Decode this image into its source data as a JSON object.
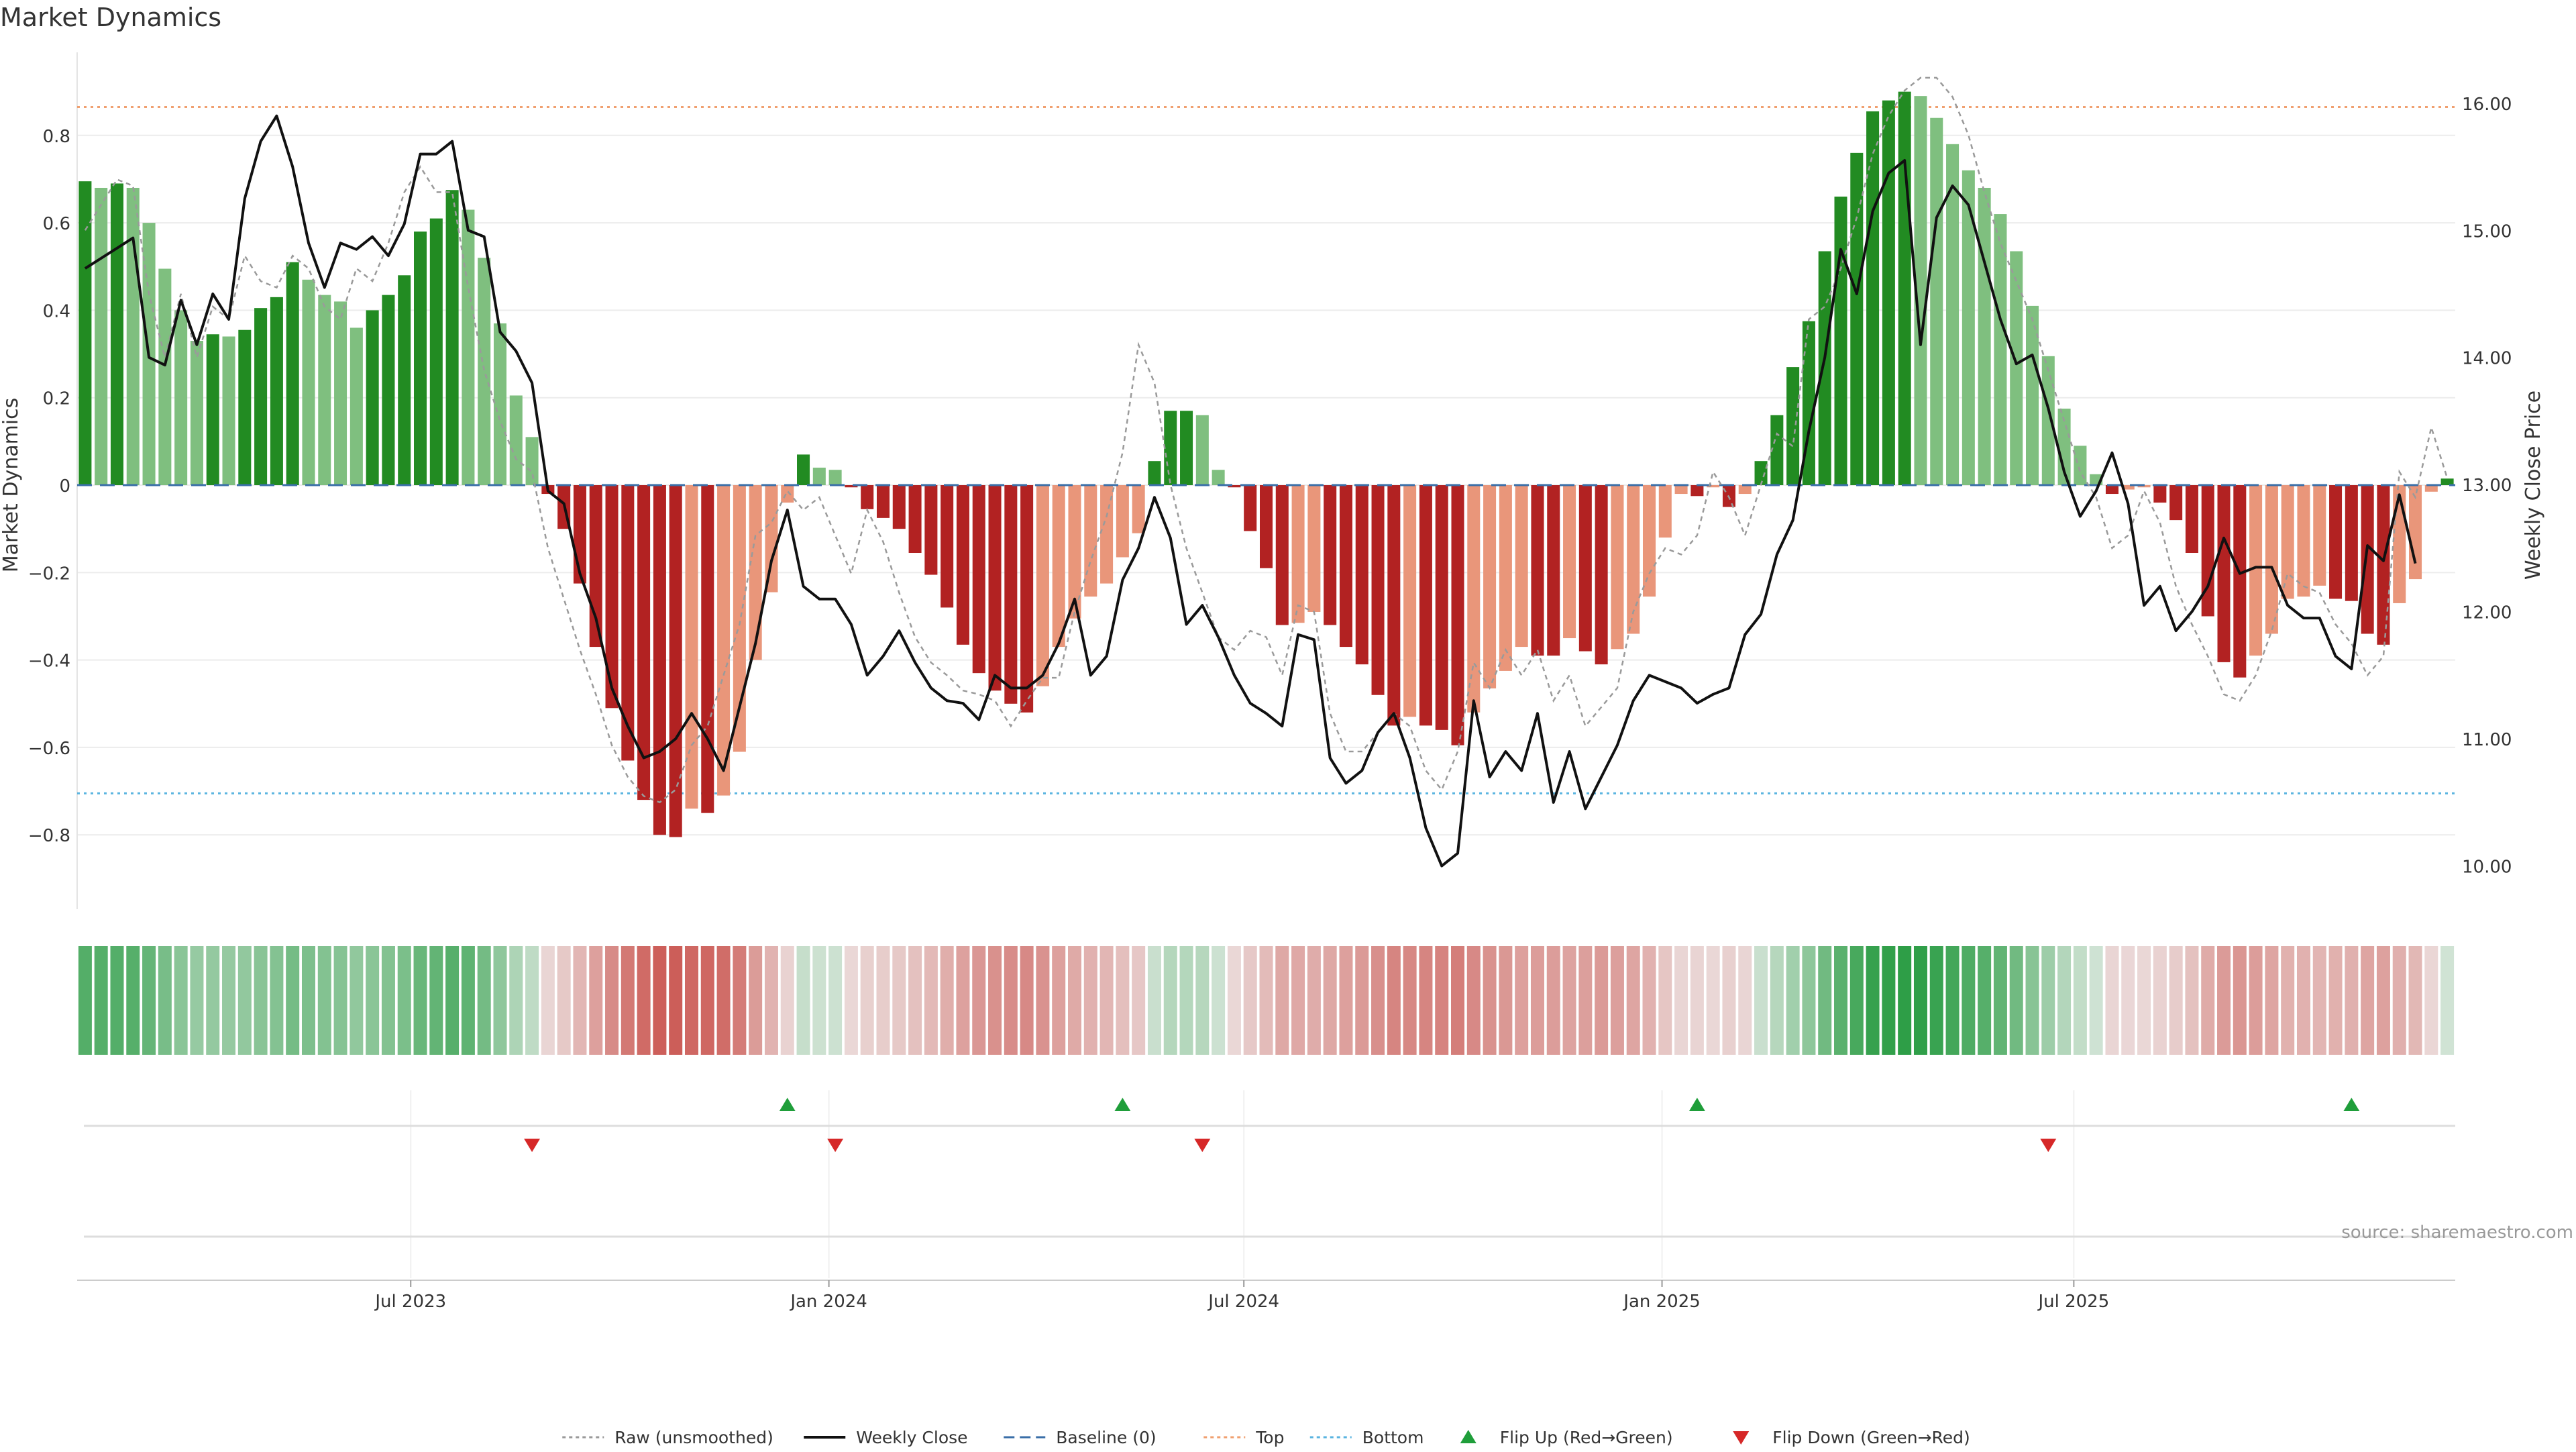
{
  "chart_data": {
    "type": "bar",
    "title": "Market Dynamics",
    "ylabel_left": "Market Dynamics",
    "ylabel_right": "Weekly Close Price",
    "source": "source: sharemaestro.com",
    "ylim_left": [
      -0.97,
      0.99
    ],
    "ylim_right": [
      9.66,
      16.4
    ],
    "y_ticks_left": [
      -0.8,
      -0.6,
      -0.4,
      -0.2,
      0,
      0.2,
      0.4,
      0.6,
      0.8
    ],
    "y_tick_labels_left": [
      "−0.8",
      "−0.6",
      "−0.4",
      "−0.2",
      "0",
      "0.2",
      "0.4",
      "0.6",
      "0.8"
    ],
    "y_ticks_right": [
      10,
      11,
      12,
      13,
      14,
      15,
      16
    ],
    "y_tick_labels_right": [
      "10.00",
      "11.00",
      "12.00",
      "13.00",
      "14.00",
      "15.00",
      "16.00"
    ],
    "x_ticks": [
      {
        "index": 20.4,
        "label": "Jul 2023"
      },
      {
        "index": 46.6,
        "label": "Jan 2024"
      },
      {
        "index": 72.6,
        "label": "Jul 2024"
      },
      {
        "index": 98.8,
        "label": "Jan 2025"
      },
      {
        "index": 124.6,
        "label": "Jul 2025"
      }
    ],
    "grid": true,
    "legend_position": "bottom-center",
    "reference_lines": {
      "baseline": 0,
      "top": 0.865,
      "bottom": -0.705
    },
    "series": [
      {
        "name": "Weekly Close",
        "type": "line",
        "axis": "right",
        "values": [
          14.7,
          14.78,
          14.86,
          14.94,
          14.0,
          13.94,
          14.45,
          14.1,
          14.5,
          14.3,
          15.25,
          15.7,
          15.9,
          15.5,
          14.9,
          14.55,
          14.9,
          14.85,
          14.95,
          14.8,
          15.05,
          15.6,
          15.6,
          15.7,
          15.0,
          14.95,
          14.2,
          14.05,
          13.8,
          12.95,
          12.85,
          12.3,
          11.95,
          11.4,
          11.1,
          10.85,
          10.9,
          11.0,
          11.2,
          11.0,
          10.75,
          11.25,
          11.75,
          12.4,
          12.8,
          12.2,
          12.1,
          12.1,
          11.9,
          11.5,
          11.65,
          11.85,
          11.6,
          11.4,
          11.3,
          11.28,
          11.15,
          11.5,
          11.4,
          11.4,
          11.5,
          11.75,
          12.1,
          11.5,
          11.65,
          12.25,
          12.5,
          12.9,
          12.58,
          11.9,
          12.05,
          11.8,
          11.5,
          11.28,
          11.2,
          11.1,
          11.82,
          11.78,
          10.85,
          10.65,
          10.75,
          11.05,
          11.2,
          10.85,
          10.3,
          10.0,
          10.1,
          11.3,
          10.7,
          10.9,
          10.75,
          11.2,
          10.5,
          10.9,
          10.45,
          10.7,
          10.95,
          11.3,
          11.5,
          11.45,
          11.4,
          11.28,
          11.35,
          11.4,
          11.82,
          11.98,
          12.45,
          12.72,
          13.42,
          14.0,
          14.85,
          14.5,
          15.15,
          15.45,
          15.55,
          14.1,
          15.1,
          15.35,
          15.2,
          14.75,
          14.3,
          13.95,
          14.02,
          13.6,
          13.1,
          12.75,
          12.95,
          13.25,
          12.85,
          12.05,
          12.2,
          11.85,
          12.0,
          12.2,
          12.58,
          12.3,
          12.35,
          12.35,
          12.05,
          11.95,
          11.95,
          11.65,
          11.55,
          12.52,
          12.4,
          12.92,
          12.38
        ]
      },
      {
        "name": "Raw (unsmoothed)",
        "type": "line",
        "axis": "right",
        "style": "dashed",
        "values": [
          15.0,
          15.2,
          15.4,
          15.35,
          14.5,
          14.0,
          14.5,
          14.0,
          14.4,
          14.3,
          14.8,
          14.6,
          14.55,
          14.8,
          14.7,
          14.4,
          14.3,
          14.7,
          14.6,
          14.9,
          15.3,
          15.5,
          15.3,
          15.3,
          14.55,
          13.9,
          13.5,
          13.2,
          13.1,
          12.5,
          12.1,
          11.7,
          11.35,
          10.95,
          10.7,
          10.55,
          10.5,
          10.6,
          10.95,
          11.1,
          11.5,
          11.9,
          12.6,
          12.7,
          12.95,
          12.8,
          12.9,
          12.6,
          12.3,
          12.8,
          12.55,
          12.15,
          11.8,
          11.6,
          11.5,
          11.38,
          11.35,
          11.3,
          11.1,
          11.3,
          11.48,
          11.48,
          12.0,
          12.4,
          12.75,
          13.25,
          14.1,
          13.8,
          13.0,
          12.5,
          12.15,
          11.8,
          11.7,
          11.85,
          11.8,
          11.5,
          12.05,
          12.0,
          11.2,
          10.9,
          10.9,
          11.05,
          11.2,
          11.1,
          10.75,
          10.6,
          10.9,
          11.6,
          11.4,
          11.7,
          11.5,
          11.7,
          11.3,
          11.5,
          11.1,
          11.25,
          11.4,
          12.0,
          12.3,
          12.5,
          12.45,
          12.6,
          13.1,
          12.9,
          12.6,
          13.0,
          13.4,
          13.3,
          14.3,
          14.4,
          14.7,
          15.1,
          15.6,
          15.9,
          16.1,
          16.2,
          16.2,
          16.05,
          15.75,
          15.3,
          14.9,
          14.6,
          14.3,
          13.9,
          13.5,
          13.1,
          12.9,
          12.5,
          12.6,
          12.95,
          12.7,
          12.2,
          11.9,
          11.65,
          11.35,
          11.3,
          11.5,
          11.85,
          12.3,
          12.2,
          12.15,
          11.9,
          11.75,
          11.5,
          11.65,
          13.1,
          12.9,
          13.45,
          13.05
        ]
      },
      {
        "name": "Market Dynamics",
        "type": "bar",
        "axis": "left",
        "values": [
          0.695,
          0.68,
          0.69,
          0.68,
          0.6,
          0.495,
          0.4,
          0.33,
          0.345,
          0.34,
          0.355,
          0.405,
          0.43,
          0.51,
          0.47,
          0.435,
          0.42,
          0.36,
          0.4,
          0.435,
          0.48,
          0.58,
          0.61,
          0.675,
          0.63,
          0.52,
          0.37,
          0.205,
          0.11,
          -0.02,
          -0.1,
          -0.225,
          -0.37,
          -0.51,
          -0.63,
          -0.72,
          -0.8,
          -0.805,
          -0.74,
          -0.75,
          -0.71,
          -0.61,
          -0.4,
          -0.245,
          -0.04,
          0.07,
          0.04,
          0.035,
          -0.005,
          -0.055,
          -0.075,
          -0.1,
          -0.155,
          -0.205,
          -0.28,
          -0.365,
          -0.43,
          -0.47,
          -0.5,
          -0.52,
          -0.46,
          -0.37,
          -0.305,
          -0.255,
          -0.225,
          -0.165,
          -0.11,
          0.055,
          0.17,
          0.17,
          0.16,
          0.035,
          -0.005,
          -0.105,
          -0.19,
          -0.32,
          -0.315,
          -0.29,
          -0.32,
          -0.37,
          -0.41,
          -0.48,
          -0.55,
          -0.53,
          -0.55,
          -0.56,
          -0.595,
          -0.52,
          -0.465,
          -0.425,
          -0.37,
          -0.39,
          -0.39,
          -0.35,
          -0.38,
          -0.41,
          -0.375,
          -0.34,
          -0.255,
          -0.12,
          -0.02,
          -0.025,
          -0.005,
          -0.05,
          -0.02,
          0.055,
          0.16,
          0.27,
          0.375,
          0.535,
          0.66,
          0.76,
          0.855,
          0.88,
          0.9,
          0.89,
          0.84,
          0.78,
          0.72,
          0.68,
          0.62,
          0.535,
          0.41,
          0.295,
          0.175,
          0.09,
          0.025,
          -0.02,
          -0.01,
          -0.005,
          -0.04,
          -0.08,
          -0.155,
          -0.3,
          -0.405,
          -0.44,
          -0.39,
          -0.34,
          -0.26,
          -0.255,
          -0.23,
          -0.26,
          -0.265,
          -0.34,
          -0.365,
          -0.27,
          -0.215,
          -0.015,
          0.015
        ]
      },
      {
        "name": "Flip Up (Red→Green)",
        "type": "scatter",
        "marker": "triangle-up",
        "indices": [
          44,
          65,
          101,
          142
        ]
      },
      {
        "name": "Flip Down (Green→Red)",
        "type": "scatter",
        "marker": "triangle-down",
        "indices": [
          28,
          47,
          70,
          123
        ]
      }
    ],
    "legend": [
      {
        "label": "Raw (unsmoothed)",
        "marker": "dotted-line",
        "color": "#9a9a9a"
      },
      {
        "label": "Weekly Close",
        "marker": "solid-line",
        "color": "#111111"
      },
      {
        "label": "Baseline (0)",
        "marker": "dashed-line",
        "color": "#3a6fa8"
      },
      {
        "label": "Top",
        "marker": "dotted-line",
        "color": "#f0a070"
      },
      {
        "label": "Bottom",
        "marker": "dotted-line",
        "color": "#5ab4e0"
      },
      {
        "label": "Flip Up (Red→Green)",
        "marker": "triangle-up",
        "color": "#1f9e3a"
      },
      {
        "label": "Flip Down (Green→Red)",
        "marker": "triangle-down",
        "color": "#d62828"
      }
    ],
    "colors": {
      "strong_green": "#228b22",
      "light_green": "#7fbf7f",
      "strong_red": "#b22222",
      "light_red": "#e9967a",
      "close_line": "#111111",
      "raw_line": "#9a9a9a",
      "baseline": "#3a6fa8",
      "top_line": "#f0a070",
      "bottom_line": "#5ab4e0",
      "flip_up": "#1f9e3a",
      "flip_down": "#d62828",
      "grid": "#ececec"
    }
  }
}
